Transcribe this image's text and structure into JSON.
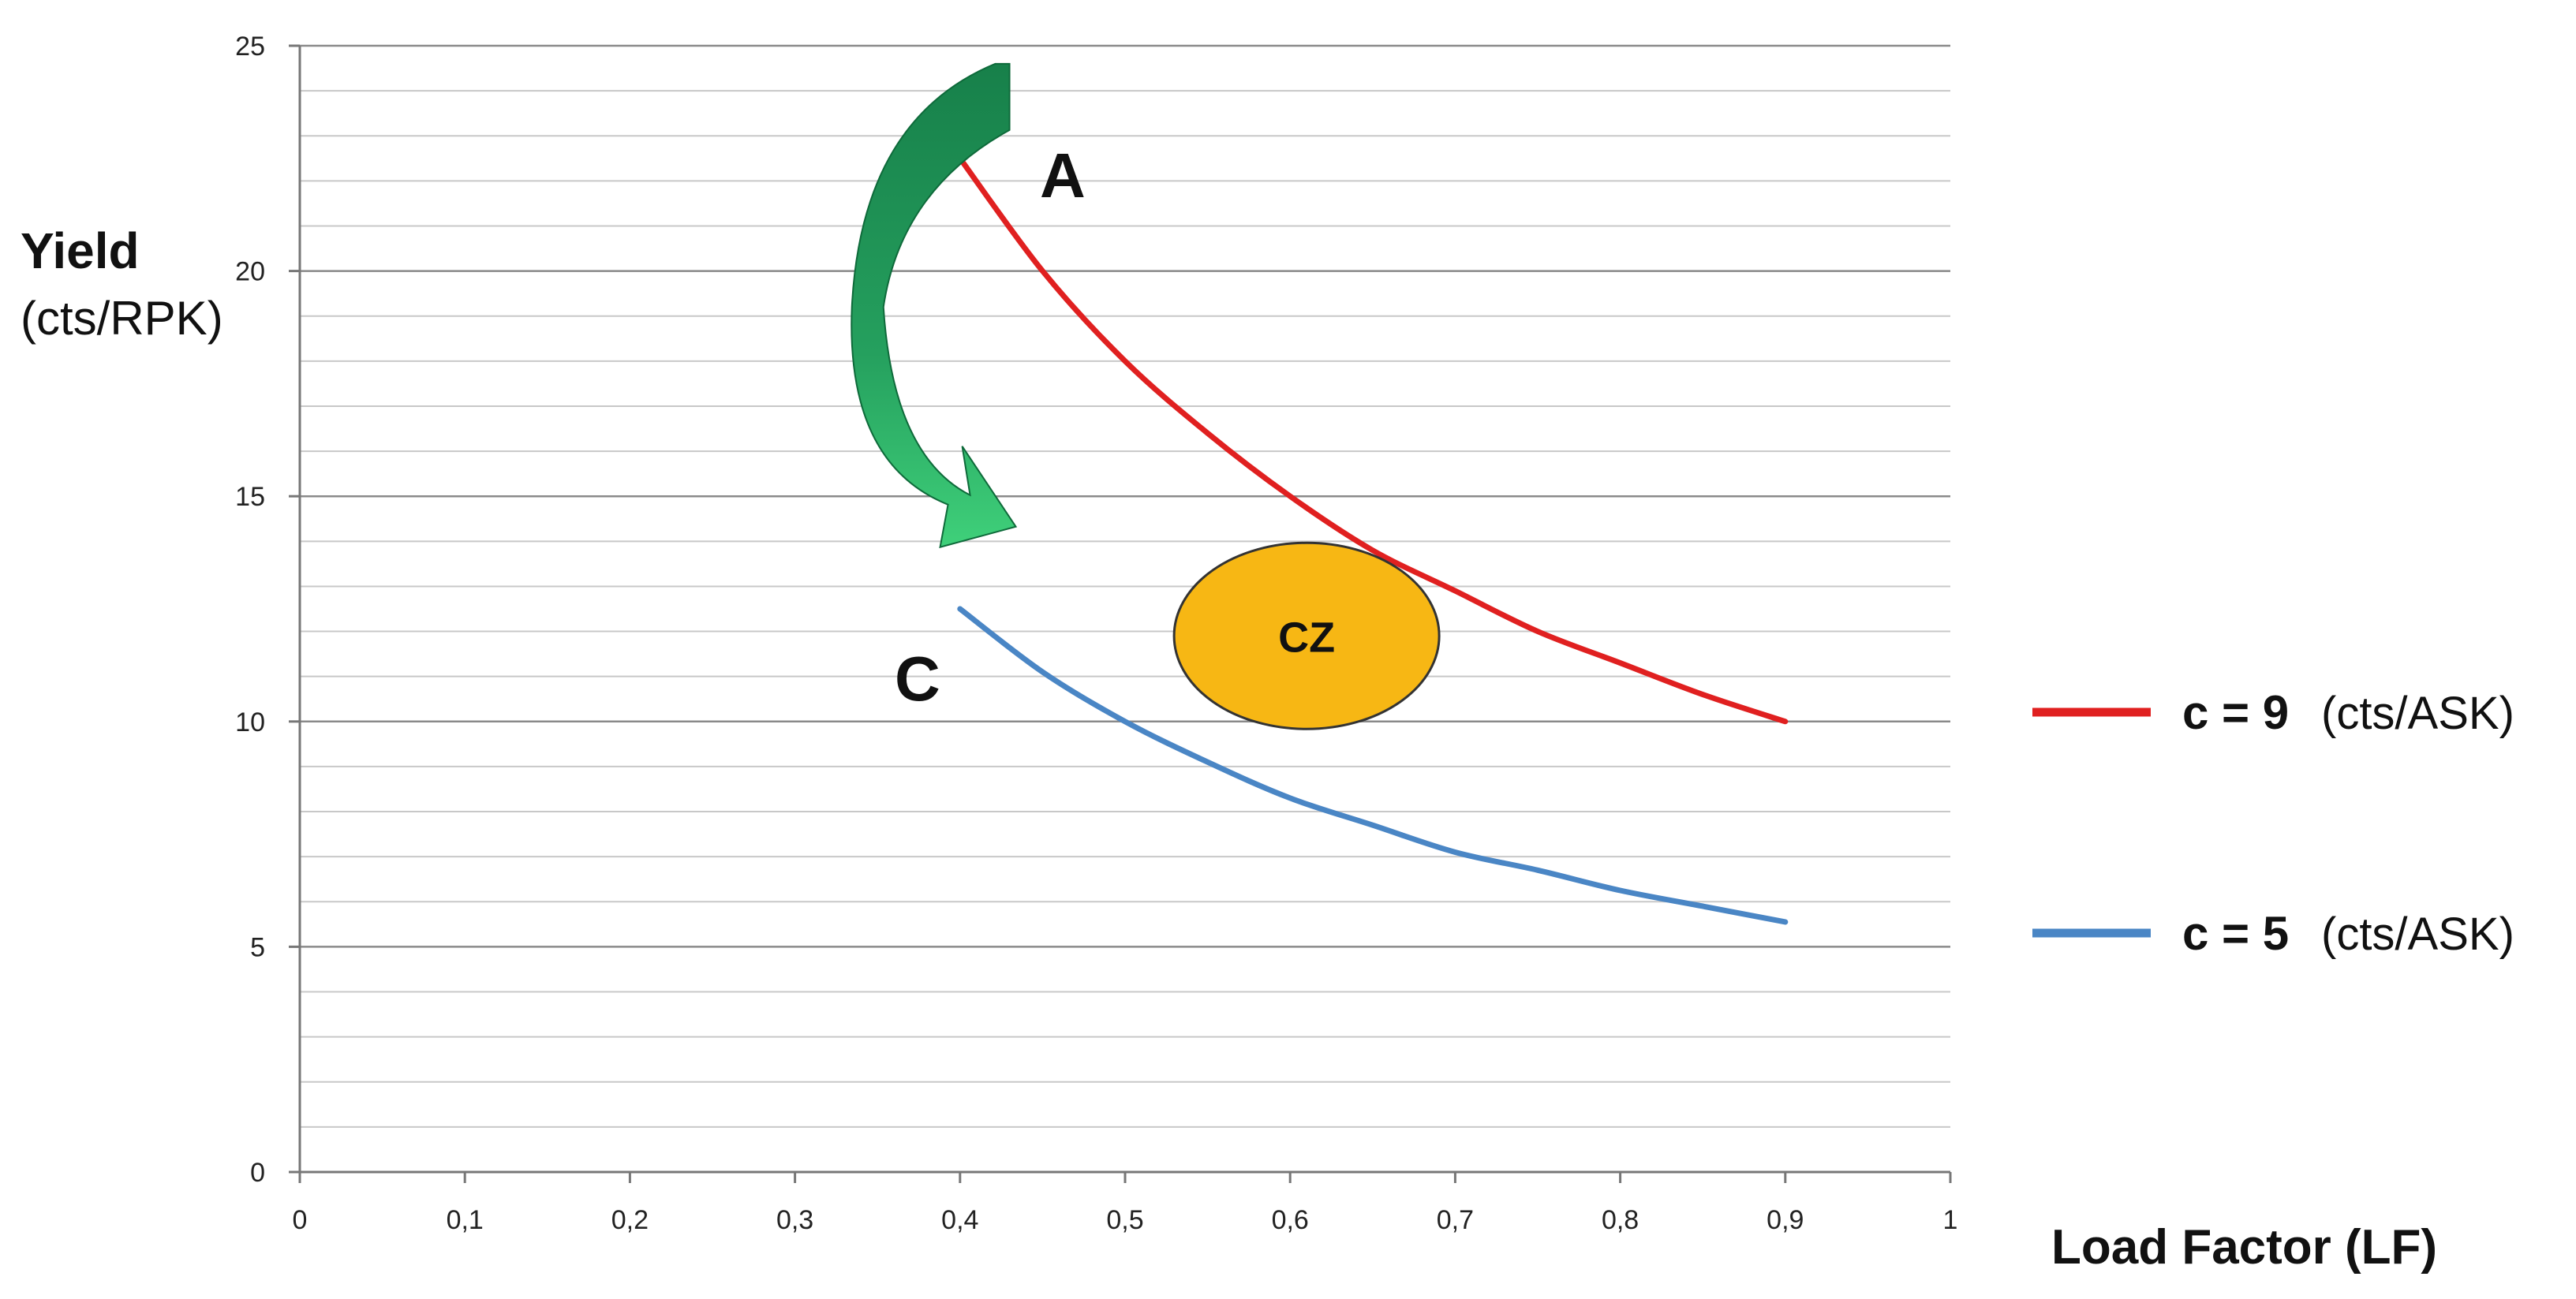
{
  "chart_data": {
    "type": "line",
    "xlabel": "Load Factor (LF)",
    "ylabel": {
      "main": "Yield",
      "unit": "(cts/RPK)"
    },
    "xlim": [
      0,
      1
    ],
    "ylim": [
      0,
      25
    ],
    "x_ticks": [
      "0",
      "0,1",
      "0,2",
      "0,3",
      "0,4",
      "0,5",
      "0,6",
      "0,7",
      "0,8",
      "0,9",
      "1"
    ],
    "y_ticks": [
      "0",
      "5",
      "10",
      "15",
      "20",
      "25"
    ],
    "grid": true,
    "legend_position": "right",
    "series": [
      {
        "name": "c = 9",
        "unit": "(cts/ASK)",
        "color": "#e02020",
        "x": [
          0.4,
          0.45,
          0.5,
          0.55,
          0.6,
          0.65,
          0.7,
          0.75,
          0.8,
          0.85,
          0.9
        ],
        "y": [
          22.5,
          20.0,
          18.0,
          16.4,
          15.0,
          13.8,
          12.9,
          12.0,
          11.3,
          10.6,
          10.0
        ]
      },
      {
        "name": "c = 5",
        "unit": "(cts/ASK)",
        "color": "#4a86c5",
        "x": [
          0.4,
          0.45,
          0.5,
          0.55,
          0.6,
          0.65,
          0.7,
          0.75,
          0.8,
          0.85,
          0.9
        ],
        "y": [
          12.5,
          11.1,
          10.0,
          9.1,
          8.3,
          7.7,
          7.1,
          6.7,
          6.25,
          5.9,
          5.55
        ]
      }
    ],
    "annotations": {
      "point_a": "A",
      "point_c": "C",
      "zone": {
        "label": "CZ",
        "color": "#f7b714",
        "x": 0.61,
        "y": 11.9
      },
      "arrow": {
        "color": "#1f9a5a",
        "from": [
          0.43,
          23.9
        ],
        "to": [
          0.43,
          14.5
        ]
      }
    }
  }
}
